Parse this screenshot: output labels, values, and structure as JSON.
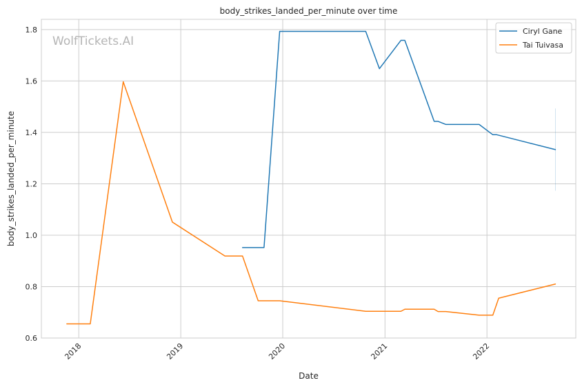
{
  "chart_data": {
    "type": "line",
    "title": "body_strikes_landed_per_minute over time",
    "xlabel": "Date",
    "ylabel": "body_strikes_landed_per_minute",
    "xlim": [
      "2017-08-20",
      "2022-11-15"
    ],
    "ylim": [
      0.6,
      1.84
    ],
    "x_ticks": [
      "2018",
      "2019",
      "2020",
      "2021",
      "2022"
    ],
    "y_ticks": [
      "0.6",
      "0.8",
      "1.0",
      "1.2",
      "1.4",
      "1.6",
      "1.8"
    ],
    "grid": true,
    "legend_position": "top-right",
    "watermark": "WolfTickets.AI",
    "series": [
      {
        "name": "Ciryl Gane",
        "color": "#1f77b4",
        "points": [
          [
            "2019-08-10",
            0.952
          ],
          [
            "2019-10-26",
            0.952
          ],
          [
            "2019-12-21",
            1.793
          ],
          [
            "2020-10-24",
            1.793
          ],
          [
            "2020-12-12",
            1.648
          ],
          [
            "2021-02-27",
            1.758
          ],
          [
            "2021-03-13",
            1.758
          ],
          [
            "2021-06-26",
            1.443
          ],
          [
            "2021-07-10",
            1.443
          ],
          [
            "2021-08-07",
            1.431
          ],
          [
            "2021-12-04",
            1.431
          ],
          [
            "2022-01-22",
            1.391
          ],
          [
            "2022-02-05",
            1.391
          ],
          [
            "2022-09-03",
            1.333
          ]
        ]
      },
      {
        "name": "Tai Tuivasa",
        "color": "#ff7f0e",
        "points": [
          [
            "2017-11-19",
            0.655
          ],
          [
            "2018-02-11",
            0.655
          ],
          [
            "2018-06-09",
            1.597
          ],
          [
            "2018-12-02",
            1.051
          ],
          [
            "2019-06-08",
            0.919
          ],
          [
            "2019-08-10",
            0.919
          ],
          [
            "2019-10-05",
            0.745
          ],
          [
            "2019-12-21",
            0.745
          ],
          [
            "2020-10-24",
            0.704
          ],
          [
            "2021-02-27",
            0.704
          ],
          [
            "2021-03-13",
            0.712
          ],
          [
            "2021-06-26",
            0.712
          ],
          [
            "2021-07-10",
            0.703
          ],
          [
            "2021-08-07",
            0.703
          ],
          [
            "2021-12-04",
            0.689
          ],
          [
            "2022-01-22",
            0.689
          ],
          [
            "2022-02-12",
            0.755
          ],
          [
            "2022-09-03",
            0.81
          ]
        ]
      }
    ]
  }
}
